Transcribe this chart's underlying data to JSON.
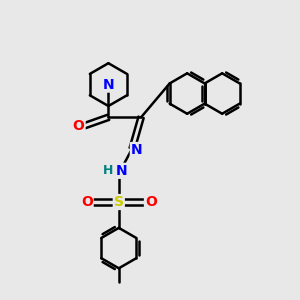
{
  "bg_color": "#e8e8e8",
  "bond_color": "#000000",
  "bond_width": 1.8,
  "atom_colors": {
    "N": "#0000ff",
    "O": "#ff0000",
    "S": "#cccc00",
    "H": "#008080",
    "C": "#000000"
  },
  "font_size": 10,
  "fig_size": [
    3.0,
    3.0
  ],
  "dpi": 100
}
